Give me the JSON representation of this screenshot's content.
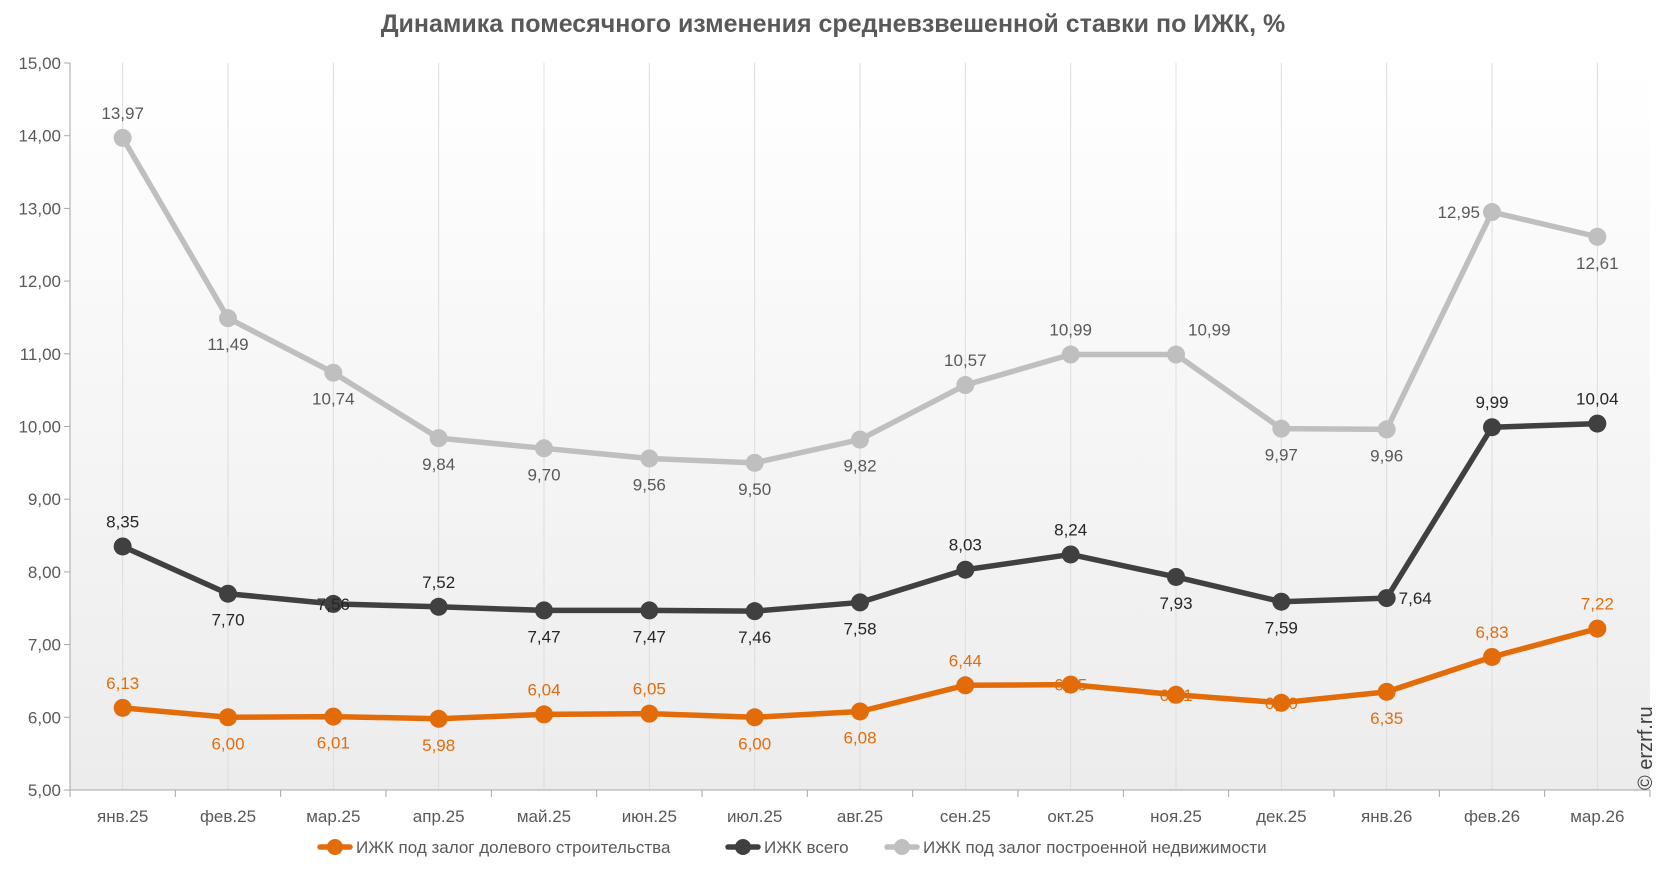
{
  "chart_data": {
    "type": "line",
    "title": "Динамика помесячного изменения средневзвешенной ставки по ИЖК, %",
    "categories": [
      "янв.25",
      "фев.25",
      "мар.25",
      "апр.25",
      "май.25",
      "июн.25",
      "июл.25",
      "авг.25",
      "сен.25",
      "окт.25",
      "ноя.25",
      "дек.25",
      "янв.26",
      "фев.26",
      "мар.26"
    ],
    "ylim": [
      5,
      15
    ],
    "yticks": [
      "5,00",
      "6,00",
      "7,00",
      "8,00",
      "9,00",
      "10,00",
      "11,00",
      "12,00",
      "13,00",
      "14,00",
      "15,00"
    ],
    "grid": "vertical",
    "legend_position": "bottom",
    "series": [
      {
        "name": "ИЖК под залог долевого строительства",
        "color": "#e36c0a",
        "label_color": "#e36c0a",
        "values": [
          6.13,
          6.0,
          6.01,
          5.98,
          6.04,
          6.05,
          6.0,
          6.08,
          6.44,
          6.45,
          6.31,
          6.2,
          6.35,
          6.83,
          7.22
        ],
        "labels": [
          "6,13",
          "6,00",
          "6,01",
          "5,98",
          "6,04",
          "6,05",
          "6,00",
          "6,08",
          "6,44",
          "6,45",
          "6,31",
          "6,20",
          "6,35",
          "6,83",
          "7,22"
        ],
        "label_pos": [
          "above",
          "below",
          "below",
          "below",
          "above",
          "above",
          "below",
          "below",
          "above",
          "center",
          "center",
          "center",
          "below",
          "above",
          "above"
        ]
      },
      {
        "name": "ИЖК всего",
        "color": "#404040",
        "label_color": "#262626",
        "values": [
          8.35,
          7.7,
          7.56,
          7.52,
          7.47,
          7.47,
          7.46,
          7.58,
          8.03,
          8.24,
          7.93,
          7.59,
          7.64,
          9.99,
          10.04
        ],
        "labels": [
          "8,35",
          "7,70",
          "7,56",
          "7,52",
          "7,47",
          "7,47",
          "7,46",
          "7,58",
          "8,03",
          "8,24",
          "7,93",
          "7,59",
          "7,64",
          "9,99",
          "10,04"
        ],
        "label_pos": [
          "above",
          "below",
          "center",
          "above",
          "below",
          "below",
          "below",
          "below",
          "above",
          "above",
          "below",
          "below",
          "right",
          "above",
          "above"
        ]
      },
      {
        "name": "ИЖК под залог построенной недвижимости",
        "color": "#bfbfbf",
        "label_color": "#595959",
        "values": [
          13.97,
          11.49,
          10.74,
          9.84,
          9.7,
          9.56,
          9.5,
          9.82,
          10.57,
          10.99,
          10.99,
          9.97,
          9.96,
          12.95,
          12.61
        ],
        "labels": [
          "13,97",
          "11,49",
          "10,74",
          "9,84",
          "9,70",
          "9,56",
          "9,50",
          "9,82",
          "10,57",
          "10,99",
          "10,99",
          "9,97",
          "9,96",
          "12,95",
          "12,61"
        ],
        "label_pos": [
          "above",
          "below",
          "below",
          "below",
          "below",
          "below",
          "below",
          "below",
          "above",
          "above",
          "above-right",
          "below",
          "below",
          "left",
          "below"
        ]
      }
    ]
  },
  "watermark": "© erzrf.ru"
}
